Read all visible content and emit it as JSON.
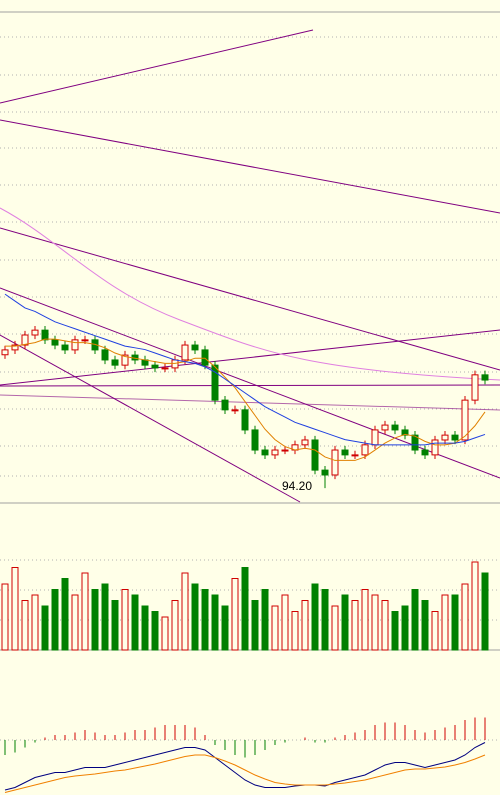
{
  "chart_data": {
    "type": "candlestick",
    "annotation": "94.20",
    "ylim": [
      93.8,
      108
    ],
    "opens": [
      98.05,
      98.19,
      98.33,
      98.62,
      98.76,
      98.48,
      98.33,
      98.19,
      98.48,
      98.48,
      98.19,
      97.9,
      97.75,
      98.04,
      97.9,
      97.75,
      97.67,
      97.67,
      97.9,
      98.33,
      98.19,
      97.75,
      96.74,
      96.46,
      96.46,
      95.88,
      95.3,
      95.16,
      95.3,
      95.3,
      95.45,
      95.59,
      94.72,
      94.58,
      95.3,
      95.16,
      95.16,
      95.45,
      95.88,
      96.02,
      95.88,
      95.73,
      95.3,
      95.16,
      95.59,
      95.73,
      95.59,
      96.74,
      97.47
    ],
    "highs": [
      98.31,
      98.45,
      98.74,
      98.88,
      98.88,
      98.6,
      98.45,
      98.6,
      98.6,
      98.6,
      98.31,
      98.02,
      98.16,
      98.16,
      98.02,
      97.87,
      97.79,
      98.02,
      98.45,
      98.45,
      98.31,
      97.87,
      96.86,
      96.58,
      96.58,
      96.0,
      95.42,
      95.42,
      95.42,
      95.57,
      95.71,
      95.71,
      94.84,
      95.42,
      95.42,
      95.28,
      95.57,
      96.0,
      96.14,
      96.14,
      96.0,
      95.85,
      95.42,
      95.71,
      95.85,
      95.85,
      96.86,
      97.59,
      97.59
    ],
    "lows": [
      97.93,
      98.07,
      98.21,
      98.5,
      98.36,
      98.21,
      98.07,
      98.07,
      98.36,
      98.07,
      97.78,
      97.63,
      97.63,
      97.78,
      97.63,
      97.55,
      97.55,
      97.55,
      97.78,
      98.07,
      97.63,
      96.62,
      96.34,
      96.34,
      95.76,
      95.18,
      95.04,
      95.04,
      95.18,
      95.18,
      95.33,
      94.6,
      94.2,
      94.46,
      95.04,
      95.04,
      95.04,
      95.33,
      95.76,
      95.76,
      95.61,
      95.18,
      95.04,
      95.04,
      95.47,
      95.47,
      95.47,
      96.62,
      97.2
    ],
    "closes": [
      98.19,
      98.33,
      98.62,
      98.76,
      98.48,
      98.33,
      98.19,
      98.48,
      98.48,
      98.19,
      97.9,
      97.75,
      98.04,
      97.9,
      97.75,
      97.67,
      97.67,
      97.9,
      98.33,
      98.19,
      97.75,
      96.74,
      96.46,
      96.46,
      95.88,
      95.3,
      95.16,
      95.3,
      95.3,
      95.45,
      95.59,
      94.72,
      94.58,
      95.3,
      95.16,
      95.16,
      95.45,
      95.88,
      96.02,
      95.88,
      95.73,
      95.3,
      95.16,
      95.59,
      95.73,
      95.59,
      96.74,
      97.47,
      97.32
    ],
    "up_color": "#d00000",
    "down_color": "#008000",
    "ma_series": [
      {
        "color": "#e08000",
        "values": [
          98.3,
          98.3,
          98.35,
          98.4,
          98.5,
          98.5,
          98.45,
          98.4,
          98.4,
          98.35,
          98.25,
          98.1,
          98.0,
          97.95,
          97.9,
          97.85,
          97.8,
          97.8,
          97.85,
          97.95,
          97.95,
          97.7,
          97.4,
          97.1,
          96.7,
          96.3,
          95.9,
          95.6,
          95.4,
          95.3,
          95.35,
          95.3,
          95.1,
          95.0,
          95.0,
          95.0,
          95.1,
          95.3,
          95.5,
          95.65,
          95.75,
          95.7,
          95.55,
          95.45,
          95.45,
          95.5,
          95.7,
          96.0,
          96.4
        ]
      },
      {
        "color": "#2040e0",
        "values": [
          99.8,
          99.6,
          99.4,
          99.3,
          99.15,
          99.0,
          98.9,
          98.8,
          98.7,
          98.6,
          98.5,
          98.4,
          98.3,
          98.25,
          98.2,
          98.1,
          98.0,
          97.9,
          97.85,
          97.8,
          97.7,
          97.55,
          97.35,
          97.15,
          96.95,
          96.75,
          96.55,
          96.4,
          96.25,
          96.1,
          96.0,
          95.9,
          95.8,
          95.7,
          95.6,
          95.55,
          95.5,
          95.45,
          95.45,
          95.45,
          95.45,
          95.45,
          95.45,
          95.5,
          95.5,
          95.5,
          95.55,
          95.65,
          95.75
        ]
      }
    ],
    "volume": {
      "ylim": [
        0,
        100
      ],
      "values": [
        60,
        75,
        45,
        50,
        40,
        55,
        65,
        50,
        70,
        55,
        60,
        45,
        55,
        50,
        40,
        35,
        30,
        45,
        70,
        60,
        55,
        50,
        40,
        65,
        75,
        45,
        55,
        40,
        50,
        35,
        45,
        60,
        55,
        40,
        50,
        45,
        55,
        50,
        45,
        35,
        40,
        55,
        45,
        35,
        50,
        50,
        60,
        80,
        70
      ]
    },
    "macd": {
      "ylim": [
        -1.1,
        0.9
      ],
      "hist": [
        -0.3,
        -0.25,
        -0.15,
        -0.05,
        0.05,
        0.1,
        0.1,
        0.15,
        0.2,
        0.15,
        0.1,
        0.1,
        0.15,
        0.2,
        0.2,
        0.25,
        0.3,
        0.3,
        0.3,
        0.25,
        0.1,
        -0.1,
        -0.2,
        -0.3,
        -0.35,
        -0.3,
        -0.2,
        -0.1,
        -0.05,
        0.0,
        0.05,
        -0.05,
        -0.05,
        0.05,
        0.1,
        0.15,
        0.2,
        0.3,
        0.35,
        0.35,
        0.3,
        0.2,
        0.15,
        0.2,
        0.25,
        0.3,
        0.4,
        0.45,
        0.45
      ],
      "dif": {
        "color": "#000080",
        "values": [
          -1.0,
          -0.95,
          -0.85,
          -0.75,
          -0.7,
          -0.65,
          -0.65,
          -0.6,
          -0.55,
          -0.55,
          -0.55,
          -0.5,
          -0.45,
          -0.4,
          -0.35,
          -0.3,
          -0.25,
          -0.2,
          -0.15,
          -0.15,
          -0.2,
          -0.35,
          -0.5,
          -0.65,
          -0.8,
          -0.9,
          -0.95,
          -0.95,
          -0.95,
          -0.92,
          -0.9,
          -0.9,
          -0.92,
          -0.85,
          -0.8,
          -0.75,
          -0.7,
          -0.6,
          -0.5,
          -0.45,
          -0.45,
          -0.5,
          -0.55,
          -0.5,
          -0.45,
          -0.4,
          -0.3,
          -0.15,
          -0.05
        ]
      },
      "dea": {
        "color": "#f08000",
        "values": [
          -1.05,
          -1.0,
          -0.95,
          -0.9,
          -0.85,
          -0.8,
          -0.75,
          -0.72,
          -0.7,
          -0.68,
          -0.65,
          -0.62,
          -0.6,
          -0.56,
          -0.52,
          -0.48,
          -0.43,
          -0.38,
          -0.33,
          -0.3,
          -0.3,
          -0.35,
          -0.42,
          -0.5,
          -0.6,
          -0.7,
          -0.78,
          -0.85,
          -0.88,
          -0.9,
          -0.9,
          -0.9,
          -0.9,
          -0.88,
          -0.86,
          -0.83,
          -0.8,
          -0.75,
          -0.7,
          -0.65,
          -0.6,
          -0.58,
          -0.58,
          -0.56,
          -0.54,
          -0.5,
          -0.45,
          -0.38,
          -0.3
        ]
      }
    }
  }
}
